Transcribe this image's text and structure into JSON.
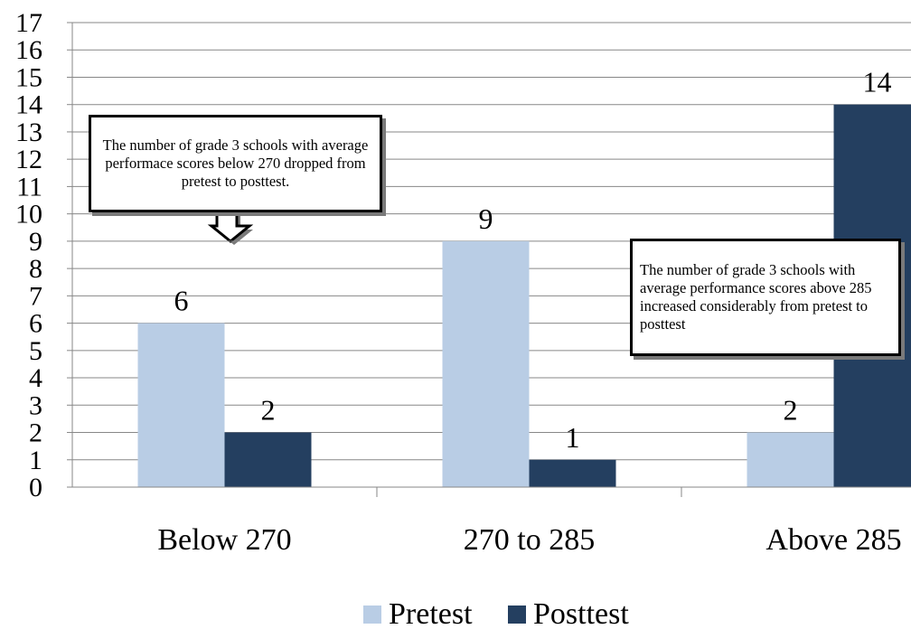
{
  "chart_data": {
    "type": "bar",
    "categories": [
      "Below 270",
      "270 to 285",
      "Above 285"
    ],
    "series": [
      {
        "name": "Pretest",
        "values": [
          6,
          9,
          2
        ],
        "color": "#b9cde5"
      },
      {
        "name": "Posttest",
        "values": [
          2,
          1,
          14
        ],
        "color": "#243f60"
      }
    ],
    "yticks": [
      "0",
      "1",
      "2",
      "3",
      "4",
      "5",
      "6",
      "7",
      "8",
      "9",
      "10",
      "11",
      "12",
      "13",
      "14",
      "15",
      "16",
      "17"
    ],
    "ylim": [
      0,
      17
    ],
    "grid": true,
    "legend_position": "bottom",
    "data_labels": [
      "6",
      "2",
      "9",
      "1",
      "2",
      "14"
    ],
    "annotations": [
      "The number of grade 3 schools with average performace scores below 270 dropped from pretest to posttest.",
      "The number of grade 3 schools with average performance scores above 285 increased considerably from pretest to posttest"
    ]
  }
}
